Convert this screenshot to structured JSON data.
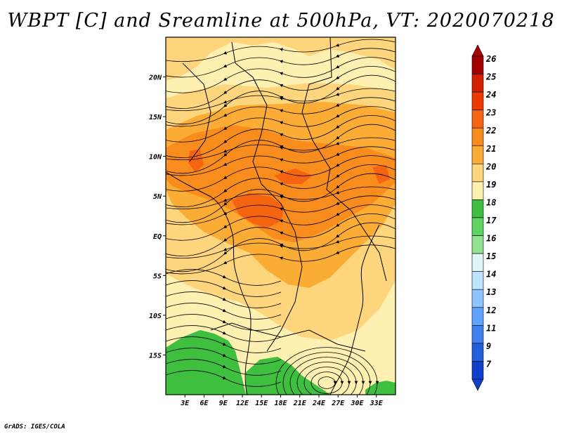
{
  "title": "WBPT [C] and Sreamline at 500hPa, VT: 2020070218",
  "credit": "GrADS: IGES/COLA",
  "map": {
    "lon_range": [
      0,
      36
    ],
    "lat_range": [
      -20,
      25
    ],
    "x_ticks": [
      "3E",
      "6E",
      "9E",
      "12E",
      "15E",
      "18E",
      "21E",
      "24E",
      "27E",
      "30E",
      "33E"
    ],
    "x_tick_values": [
      3,
      6,
      9,
      12,
      15,
      18,
      21,
      24,
      27,
      30,
      33
    ],
    "y_ticks": [
      "20N",
      "15N",
      "10N",
      "5N",
      "EQ",
      "5S",
      "10S",
      "15S"
    ],
    "y_tick_values": [
      20,
      15,
      10,
      5,
      0,
      -5,
      -10,
      -15
    ]
  },
  "colorbar": {
    "labels": [
      "26",
      "25",
      "24",
      "23",
      "22",
      "21",
      "20",
      "19",
      "18",
      "17",
      "16",
      "15",
      "14",
      "13",
      "12",
      "11",
      "9",
      "7"
    ],
    "colors": [
      "#a50000",
      "#d42000",
      "#ee3a00",
      "#f56410",
      "#f88c1c",
      "#fbac34",
      "#fdd57c",
      "#fef0b0",
      "#3fbf3f",
      "#5fd35f",
      "#8fe08f",
      "#dff7f7",
      "#bfe4ff",
      "#8fc3ff",
      "#5fa2ff",
      "#3f7fee",
      "#2060dd",
      "#1040cc"
    ]
  }
}
